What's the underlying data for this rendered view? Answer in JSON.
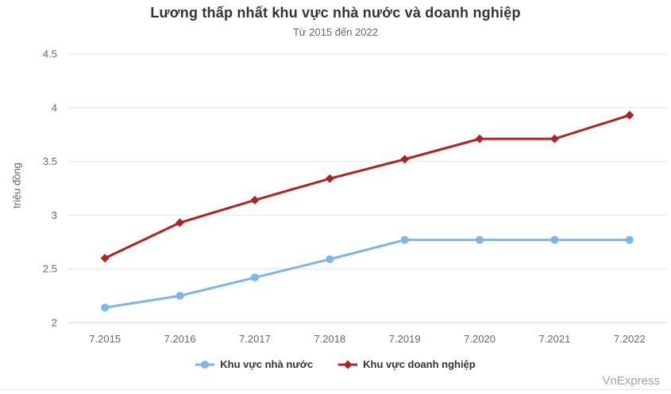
{
  "chart_data": {
    "type": "line",
    "title": "Lương thấp nhất khu vực nhà nước và doanh nghiệp",
    "subtitle": "Từ 2015 đến 2022",
    "ylabel": "triệu đồng",
    "xlabel": "",
    "categories": [
      "7.2015",
      "7.2016",
      "7.2017",
      "7.2018",
      "7.2019",
      "7.2020",
      "7.2021",
      "7.2022"
    ],
    "series": [
      {
        "name": "Khu vực nhà nước",
        "color": "#7cb5ec",
        "marker": "circle",
        "values": [
          2.14,
          2.25,
          2.42,
          2.59,
          2.77,
          2.77,
          2.77,
          2.77
        ]
      },
      {
        "name": "Khu vực doanh nghiệp",
        "color": "#b22222",
        "marker": "diamond",
        "values": [
          2.6,
          2.93,
          3.14,
          3.34,
          3.52,
          3.71,
          3.71,
          3.93
        ]
      }
    ],
    "ylim": [
      2,
      4.5
    ],
    "ytick_step": 0.5,
    "grid": true,
    "legend_position": "bottom"
  },
  "watermark": "VnExpress",
  "colors": {
    "title": "#333333",
    "subtitle": "#666666",
    "tick_label": "#666666",
    "axis_title": "#666666",
    "grid": "#e6e6e6",
    "axis_line": "#ccd6eb",
    "legend_text": "#333333",
    "watermark": "#a3a3a3",
    "divider": "#e2e7f0",
    "background": "#ffffff"
  }
}
